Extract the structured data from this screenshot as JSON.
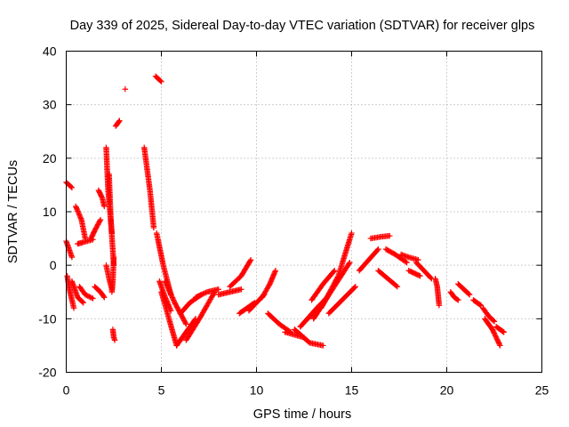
{
  "chart_data": {
    "type": "scatter",
    "title": "Day 339 of 2025, Sidereal Day-to-day VTEC variation (SDTVAR) for receiver glps",
    "xlabel": "GPS time / hours",
    "ylabel": "SDTVAR / TECUs",
    "xlim": [
      0,
      25
    ],
    "ylim": [
      -20,
      40
    ],
    "xticks": [
      0,
      5,
      10,
      15,
      20,
      25
    ],
    "yticks": [
      -20,
      -10,
      0,
      10,
      20,
      30,
      40
    ],
    "xtick_labels": [
      "0",
      "5",
      "10",
      "15",
      "20",
      "25"
    ],
    "ytick_labels": [
      "-20",
      "-10",
      "0",
      "10",
      "20",
      "30",
      "40"
    ],
    "grid": true,
    "marker": "+",
    "color": "#ff0000",
    "segments": [
      {
        "x": [
          0.0,
          0.15,
          0.3
        ],
        "y": [
          4.5,
          3.0,
          1.5
        ]
      },
      {
        "x": [
          0.05,
          0.2,
          0.4
        ],
        "y": [
          -2.0,
          -5.0,
          -8.0
        ]
      },
      {
        "x": [
          0.0,
          0.15,
          0.3
        ],
        "y": [
          15.5,
          15.0,
          14.5
        ]
      },
      {
        "x": [
          0.3,
          0.6,
          0.9
        ],
        "y": [
          -3.0,
          -6.0,
          -7.0
        ]
      },
      {
        "x": [
          0.5,
          0.8,
          1.0
        ],
        "y": [
          11.0,
          8.5,
          5.0
        ]
      },
      {
        "x": [
          0.6,
          0.9,
          1.4
        ],
        "y": [
          4.0,
          4.3,
          4.8
        ]
      },
      {
        "x": [
          0.7,
          1.0,
          1.4
        ],
        "y": [
          -4.0,
          -5.5,
          -6.2
        ]
      },
      {
        "x": [
          1.3,
          1.5,
          1.8
        ],
        "y": [
          5.0,
          6.5,
          8.5
        ]
      },
      {
        "x": [
          1.5,
          1.8,
          2.0
        ],
        "y": [
          -4.0,
          -5.0,
          -6.0
        ]
      },
      {
        "x": [
          1.7,
          1.9,
          2.0
        ],
        "y": [
          14.0,
          12.5,
          11.0
        ]
      },
      {
        "x": [
          2.1,
          2.2,
          2.4
        ],
        "y": [
          22.0,
          14.0,
          6.0
        ]
      },
      {
        "x": [
          2.1,
          2.25,
          2.4
        ],
        "y": [
          0.0,
          -2.5,
          -4.5
        ]
      },
      {
        "x": [
          2.25,
          2.35,
          2.5
        ],
        "y": [
          17.0,
          8.0,
          0.0
        ]
      },
      {
        "x": [
          2.4,
          2.45,
          2.5
        ],
        "y": [
          -5.0,
          -3.0,
          1.5
        ]
      },
      {
        "x": [
          2.45,
          2.5,
          2.55
        ],
        "y": [
          -12.0,
          -13.5,
          -14.0
        ]
      },
      {
        "x": [
          2.6,
          2.7,
          2.8
        ],
        "y": [
          26.0,
          26.5,
          27.0
        ]
      },
      {
        "x": [
          3.1
        ],
        "y": [
          32.9
        ]
      },
      {
        "x": [
          4.1,
          4.4,
          4.6
        ],
        "y": [
          22.0,
          14.0,
          7.0
        ]
      },
      {
        "x": [
          4.7,
          4.85,
          5.0
        ],
        "y": [
          35.3,
          34.8,
          34.3
        ]
      },
      {
        "x": [
          4.75,
          5.1,
          5.5
        ],
        "y": [
          6.0,
          0.0,
          -5.5
        ]
      },
      {
        "x": [
          4.9,
          5.2,
          5.5
        ],
        "y": [
          -3.0,
          -6.0,
          -8.5
        ]
      },
      {
        "x": [
          5.0,
          5.4,
          5.8
        ],
        "y": [
          -5.0,
          -10.0,
          -15.0
        ]
      },
      {
        "x": [
          5.2,
          5.7,
          6.3
        ],
        "y": [
          -3.0,
          -7.0,
          -11.0
        ]
      },
      {
        "x": [
          5.8,
          6.3,
          6.8
        ],
        "y": [
          -15.0,
          -12.5,
          -10.0
        ]
      },
      {
        "x": [
          6.0,
          6.5,
          7.1
        ],
        "y": [
          -9.0,
          -7.0,
          -5.5
        ]
      },
      {
        "x": [
          6.3,
          7.0,
          7.8
        ],
        "y": [
          -14.0,
          -10.0,
          -5.0
        ]
      },
      {
        "x": [
          6.8,
          7.4,
          8.0
        ],
        "y": [
          -6.0,
          -5.0,
          -4.5
        ]
      },
      {
        "x": [
          8.0,
          8.6,
          9.2
        ],
        "y": [
          -5.5,
          -5.0,
          -4.5
        ]
      },
      {
        "x": [
          8.6,
          9.2,
          9.7
        ],
        "y": [
          -4.0,
          -2.0,
          1.0
        ]
      },
      {
        "x": [
          9.1,
          9.5,
          9.9
        ],
        "y": [
          -9.0,
          -8.0,
          -7.0
        ]
      },
      {
        "x": [
          9.6,
          10.0,
          10.4
        ],
        "y": [
          -8.5,
          -7.0,
          -5.5
        ]
      },
      {
        "x": [
          10.3,
          10.7,
          11.0
        ],
        "y": [
          -6.0,
          -3.5,
          -1.0
        ]
      },
      {
        "x": [
          10.6,
          11.2,
          11.8
        ],
        "y": [
          -9.0,
          -11.0,
          -12.5
        ]
      },
      {
        "x": [
          11.5,
          12.0,
          12.5
        ],
        "y": [
          -12.5,
          -13.0,
          -13.5
        ]
      },
      {
        "x": [
          12.0,
          12.8,
          13.5
        ],
        "y": [
          -12.0,
          -14.5,
          -15.0
        ]
      },
      {
        "x": [
          12.3,
          12.8,
          13.3
        ],
        "y": [
          -11.5,
          -9.5,
          -7.5
        ]
      },
      {
        "x": [
          12.7,
          13.2,
          13.7
        ],
        "y": [
          -10.0,
          -8.0,
          -6.0
        ]
      },
      {
        "x": [
          12.9,
          13.5,
          14.1
        ],
        "y": [
          -6.5,
          -3.5,
          -1.0
        ]
      },
      {
        "x": [
          13.0,
          13.9,
          14.9
        ],
        "y": [
          -10.0,
          -5.0,
          0.5
        ]
      },
      {
        "x": [
          13.4,
          14.3,
          15.0
        ],
        "y": [
          -8.0,
          -2.0,
          6.0
        ]
      },
      {
        "x": [
          13.8,
          14.5,
          15.2
        ],
        "y": [
          -9.0,
          -6.5,
          -4.0
        ]
      },
      {
        "x": [
          15.4,
          15.9,
          16.4
        ],
        "y": [
          -1.0,
          1.0,
          3.0
        ]
      },
      {
        "x": [
          16.0,
          16.5,
          17.0
        ],
        "y": [
          5.0,
          5.3,
          5.5
        ]
      },
      {
        "x": [
          16.4,
          16.9,
          17.4
        ],
        "y": [
          -1.0,
          -2.5,
          -4.0
        ]
      },
      {
        "x": [
          16.8,
          17.3,
          17.9
        ],
        "y": [
          3.0,
          2.0,
          0.5
        ]
      },
      {
        "x": [
          17.6,
          18.0,
          18.5
        ],
        "y": [
          2.0,
          1.5,
          1.0
        ]
      },
      {
        "x": [
          18.0,
          18.3,
          18.6
        ],
        "y": [
          -1.0,
          -1.5,
          -2.0
        ]
      },
      {
        "x": [
          18.4,
          18.8,
          19.2
        ],
        "y": [
          0.5,
          -1.0,
          -2.5
        ]
      },
      {
        "x": [
          19.4,
          19.5,
          19.6
        ],
        "y": [
          -2.5,
          -4.0,
          -7.5
        ]
      },
      {
        "x": [
          20.2,
          20.4,
          20.6
        ],
        "y": [
          -5.0,
          -6.0,
          -6.5
        ]
      },
      {
        "x": [
          20.6,
          20.9,
          21.2
        ],
        "y": [
          -3.5,
          -4.5,
          -5.5
        ]
      },
      {
        "x": [
          21.4,
          21.6,
          21.8
        ],
        "y": [
          -6.5,
          -7.0,
          -7.5
        ]
      },
      {
        "x": [
          21.9,
          22.2,
          22.5
        ],
        "y": [
          -8.0,
          -9.5,
          -10.5
        ]
      },
      {
        "x": [
          22.0,
          22.4,
          22.8
        ],
        "y": [
          -10.0,
          -12.0,
          -15.0
        ]
      },
      {
        "x": [
          22.6,
          22.8,
          23.0
        ],
        "y": [
          -11.5,
          -12.0,
          -12.5
        ]
      }
    ]
  }
}
